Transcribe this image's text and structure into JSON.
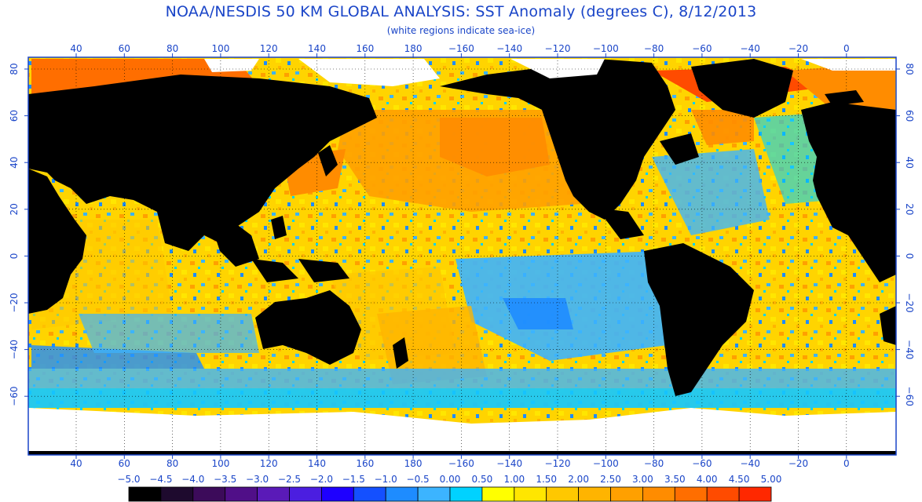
{
  "title": "NOAA/NESDIS 50 KM GLOBAL ANALYSIS: SST Anomaly (degrees C), 8/12/2013",
  "subtitle": "(white regions indicate sea-ice)",
  "colors": {
    "text": "#1a45c8",
    "frame": "#1a45c8",
    "land": "#000000",
    "ice": "#ffffff"
  },
  "axes": {
    "lon_labels": [
      "40",
      "60",
      "80",
      "100",
      "120",
      "140",
      "160",
      "180",
      "−160",
      "−140",
      "−120",
      "−100",
      "−80",
      "−60",
      "−40",
      "−20",
      "0"
    ],
    "lat_labels": [
      "80",
      "60",
      "40",
      "20",
      "0",
      "−20",
      "−40",
      "−60"
    ]
  },
  "colorbar": {
    "labels": [
      "−5.0",
      "−4.5",
      "−4.0",
      "−3.5",
      "−3.0",
      "−2.5",
      "−2.0",
      "−1.5",
      "−1.0",
      "−0.5",
      "0.00",
      "0.50",
      "1.00",
      "1.50",
      "2.00",
      "2.50",
      "3.00",
      "3.50",
      "4.00",
      "4.50",
      "5.00"
    ],
    "colors": [
      "#000000",
      "#1e0a2e",
      "#3c0b5a",
      "#500f88",
      "#5a1ab8",
      "#4b1ee0",
      "#1e00ff",
      "#1450ff",
      "#1e8cff",
      "#3cb4ff",
      "#00d2ff",
      "#ffff00",
      "#ffe600",
      "#ffc800",
      "#ffb400",
      "#ffa000",
      "#ff8c00",
      "#ff6e00",
      "#ff4b00",
      "#ff2800"
    ]
  }
}
